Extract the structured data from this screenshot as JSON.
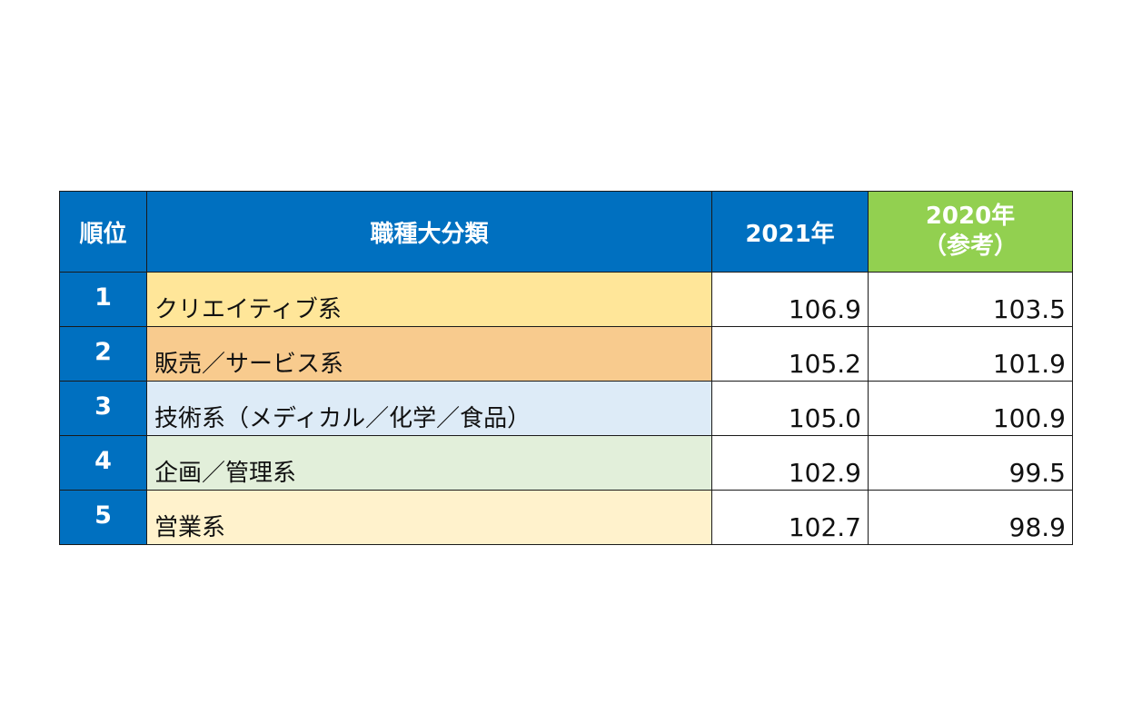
{
  "chart_data": {
    "type": "table",
    "columns": [
      "順位",
      "職種大分類",
      "2021年",
      "2020年",
      "（参考）"
    ],
    "rows": [
      {
        "rank": "1",
        "category": "クリエイティブ系",
        "y2021": "106.9",
        "y2020": "103.5",
        "color": "#ffe699"
      },
      {
        "rank": "2",
        "category": "販売／サービス系",
        "y2021": "105.2",
        "y2020": "101.9",
        "color": "#f8cb8e"
      },
      {
        "rank": "3",
        "category": "技術系（メディカル／化学／食品）",
        "y2021": "105.0",
        "y2020": "100.9",
        "color": "#ddebf7"
      },
      {
        "rank": "4",
        "category": "企画／管理系",
        "y2021": "102.9",
        "y2020": "99.5",
        "color": "#e2efda"
      },
      {
        "rank": "5",
        "category": "営業系",
        "y2021": "102.7",
        "y2020": "98.9",
        "color": "#fff2cc"
      }
    ],
    "header_colors": {
      "primary": "#0070c0",
      "reference": "#92d050"
    }
  }
}
